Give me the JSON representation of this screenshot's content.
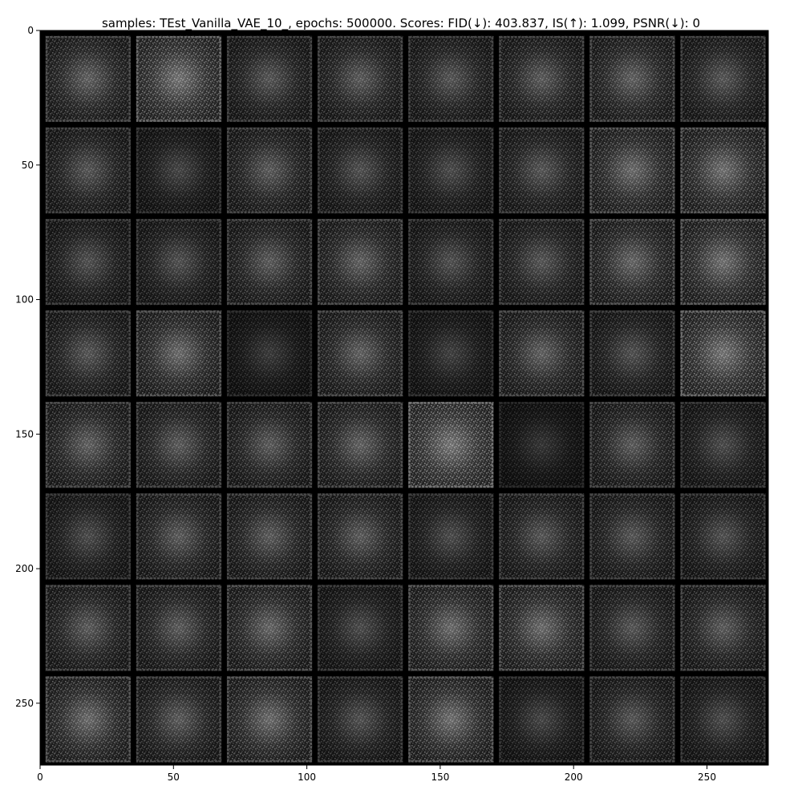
{
  "figure": {
    "title": "samples: TEst_Vanilla_VAE_10_, epochs: 500000. Scores: FID(↓): 403.837, IS(↑): 1.099, PSNR(↓): 0"
  },
  "chart_data": {
    "type": "heatmap",
    "title": "samples: TEst_Vanilla_VAE_10_, epochs: 500000. Scores: FID(↓): 403.837, IS(↑): 1.099, PSNR(↓): 0",
    "xlabel": "",
    "ylabel": "",
    "xlim": [
      0,
      273
    ],
    "ylim": [
      273,
      0
    ],
    "x_ticks": [
      0,
      50,
      100,
      150,
      200,
      250
    ],
    "y_ticks": [
      0,
      50,
      100,
      150,
      200,
      250
    ],
    "grid": false,
    "colormap": "gray",
    "background_color": "#000000",
    "image_grid": {
      "rows": 8,
      "cols": 8,
      "tile_size": 32,
      "padding": 2
    },
    "tile_brightness": [
      [
        0.45,
        0.75,
        0.35,
        0.4,
        0.35,
        0.4,
        0.45,
        0.35
      ],
      [
        0.35,
        0.2,
        0.4,
        0.3,
        0.25,
        0.35,
        0.55,
        0.6
      ],
      [
        0.3,
        0.3,
        0.4,
        0.45,
        0.3,
        0.35,
        0.5,
        0.6
      ],
      [
        0.35,
        0.55,
        0.1,
        0.45,
        0.15,
        0.45,
        0.3,
        0.75
      ],
      [
        0.45,
        0.4,
        0.4,
        0.45,
        0.85,
        0.05,
        0.4,
        0.25
      ],
      [
        0.25,
        0.4,
        0.4,
        0.4,
        0.25,
        0.35,
        0.35,
        0.3
      ],
      [
        0.4,
        0.4,
        0.5,
        0.25,
        0.55,
        0.55,
        0.35,
        0.4
      ],
      [
        0.55,
        0.4,
        0.55,
        0.3,
        0.6,
        0.2,
        0.35,
        0.25
      ]
    ]
  }
}
